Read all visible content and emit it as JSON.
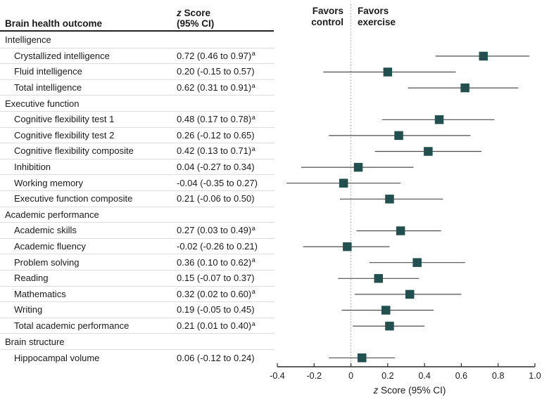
{
  "table": {
    "outcome_header": "Brain health outcome",
    "score_header_italic": "z",
    "score_header_rest": " Score",
    "score_header_line2": "(95% CI)"
  },
  "plot_labels": {
    "favors_control": "Favors\ncontrol",
    "favors_exercise": "Favors\nexercise"
  },
  "colors": {
    "marker": "#21504e",
    "ci_line": "#4d4d4d",
    "zero_line": "#999999",
    "axis_line": "#2b2b2b",
    "separator": "#dcdcdc",
    "header_rule": "#222222",
    "text": "#1a1a1a"
  },
  "chart_data": {
    "type": "scatter",
    "subtype": "forest",
    "title": "",
    "xlabel_italic": "z",
    "xlabel_rest": " Score (95% CI)",
    "xlim": [
      -0.4,
      1.0
    ],
    "xticks": [
      {
        "v": -0.4,
        "label": "-0.4"
      },
      {
        "v": -0.2,
        "label": "-0.2"
      },
      {
        "v": 0,
        "label": "0"
      },
      {
        "v": 0.2,
        "label": "0.2"
      },
      {
        "v": 0.4,
        "label": "0.4"
      },
      {
        "v": 0.6,
        "label": "0.6"
      },
      {
        "v": 0.8,
        "label": "0.8"
      },
      {
        "v": 1.0,
        "label": "1.0"
      }
    ],
    "zero_line": 0,
    "grid": false,
    "legend": "none",
    "rows": [
      {
        "type": "section",
        "label": "Intelligence"
      },
      {
        "type": "item",
        "label": "Crystallized intelligence",
        "ci_text": "0.72 (0.46 to 0.97)",
        "footnote": "a",
        "est": 0.72,
        "lo": 0.46,
        "hi": 0.97
      },
      {
        "type": "item",
        "label": "Fluid intelligence",
        "ci_text": "0.20 (-0.15 to 0.57)",
        "footnote": "",
        "est": 0.2,
        "lo": -0.15,
        "hi": 0.57
      },
      {
        "type": "item",
        "label": "Total intelligence",
        "ci_text": "0.62 (0.31 to 0.91)",
        "footnote": "a",
        "est": 0.62,
        "lo": 0.31,
        "hi": 0.91
      },
      {
        "type": "section",
        "label": "Executive function"
      },
      {
        "type": "item",
        "label": "Cognitive flexibility test 1",
        "ci_text": "0.48 (0.17 to 0.78)",
        "footnote": "a",
        "est": 0.48,
        "lo": 0.17,
        "hi": 0.78
      },
      {
        "type": "item",
        "label": "Cognitive flexibility test 2",
        "ci_text": "0.26 (-0.12 to 0.65)",
        "footnote": "",
        "est": 0.26,
        "lo": -0.12,
        "hi": 0.65
      },
      {
        "type": "item",
        "label": "Cognitive flexibility composite",
        "ci_text": "0.42 (0.13 to 0.71)",
        "footnote": "a",
        "est": 0.42,
        "lo": 0.13,
        "hi": 0.71
      },
      {
        "type": "item",
        "label": "Inhibition",
        "ci_text": "0.04 (-0.27 to 0.34)",
        "footnote": "",
        "est": 0.04,
        "lo": -0.27,
        "hi": 0.34
      },
      {
        "type": "item",
        "label": "Working memory",
        "ci_text": "-0.04 (-0.35 to 0.27)",
        "footnote": "",
        "est": -0.04,
        "lo": -0.35,
        "hi": 0.27
      },
      {
        "type": "item",
        "label": "Executive function composite",
        "ci_text": "0.21 (-0.06 to 0.50)",
        "footnote": "",
        "est": 0.21,
        "lo": -0.06,
        "hi": 0.5
      },
      {
        "type": "section",
        "label": "Academic performance"
      },
      {
        "type": "item",
        "label": "Academic skills",
        "ci_text": "0.27 (0.03 to 0.49)",
        "footnote": "a",
        "est": 0.27,
        "lo": 0.03,
        "hi": 0.49
      },
      {
        "type": "item",
        "label": "Academic fluency",
        "ci_text": "-0.02 (-0.26 to 0.21)",
        "footnote": "",
        "est": -0.02,
        "lo": -0.26,
        "hi": 0.21
      },
      {
        "type": "item",
        "label": "Problem solving",
        "ci_text": "0.36 (0.10 to 0.62)",
        "footnote": "a",
        "est": 0.36,
        "lo": 0.1,
        "hi": 0.62
      },
      {
        "type": "item",
        "label": "Reading",
        "ci_text": "0.15 (-0.07 to 0.37)",
        "footnote": "",
        "est": 0.15,
        "lo": -0.07,
        "hi": 0.37
      },
      {
        "type": "item",
        "label": "Mathematics",
        "ci_text": "0.32 (0.02 to 0.60)",
        "footnote": "a",
        "est": 0.32,
        "lo": 0.02,
        "hi": 0.6
      },
      {
        "type": "item",
        "label": "Writing",
        "ci_text": "0.19 (-0.05 to 0.45)",
        "footnote": "",
        "est": 0.19,
        "lo": -0.05,
        "hi": 0.45
      },
      {
        "type": "item",
        "label": "Total academic performance",
        "ci_text": "0.21 (0.01 to 0.40)",
        "footnote": "a",
        "est": 0.21,
        "lo": 0.01,
        "hi": 0.4
      },
      {
        "type": "section",
        "label": "Brain structure"
      },
      {
        "type": "item",
        "label": "Hippocampal volume",
        "ci_text": "0.06 (-0.12 to 0.24)",
        "footnote": "",
        "est": 0.06,
        "lo": -0.12,
        "hi": 0.24
      }
    ]
  }
}
